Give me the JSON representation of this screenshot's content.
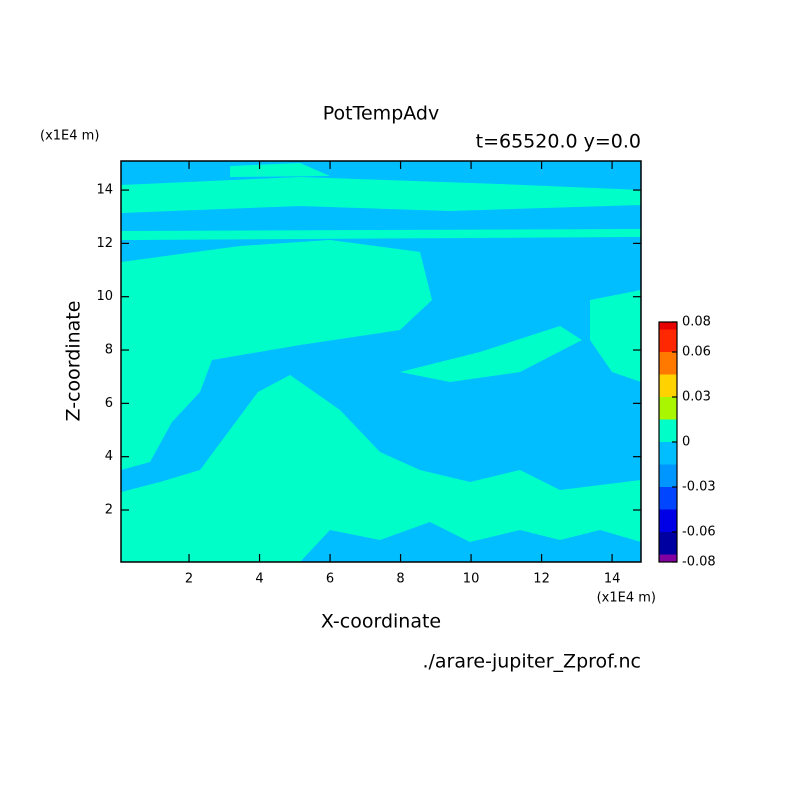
{
  "chart_data": {
    "type": "contour",
    "title": "PotTempAdv",
    "subtitle": "t=65520.0 y=0.0",
    "x_label": "X-coordinate",
    "y_label": "Z-coordinate",
    "x_unit": "(x1E4 m)",
    "y_unit": "(x1E4 m)",
    "source": "./arare-jupiter_Zprof.nc",
    "xlim": [
      0.07,
      14.82
    ],
    "xticks": [
      2,
      4,
      6,
      8,
      10,
      12,
      14
    ],
    "ylim": [
      0.05,
      15.09
    ],
    "yticks": [
      2,
      4,
      6,
      8,
      10,
      12,
      14
    ],
    "colorbar": {
      "lim": [
        -0.08,
        0.08
      ],
      "ticks": [
        -0.08,
        -0.06,
        -0.03,
        0,
        0.03,
        0.06,
        0.08
      ],
      "levels": [
        -0.08,
        -0.075,
        -0.06,
        -0.045,
        -0.03,
        -0.015,
        0,
        0.015,
        0.03,
        0.045,
        0.06,
        0.075,
        0.08
      ],
      "colors": [
        "#8000a0",
        "#0000a0",
        "#0000e6",
        "#0046ff",
        "#0096ff",
        "#00beff",
        "#00ffc8",
        "#aaf500",
        "#ffd200",
        "#ff7800",
        "#ff2800",
        "#e60000"
      ]
    }
  }
}
